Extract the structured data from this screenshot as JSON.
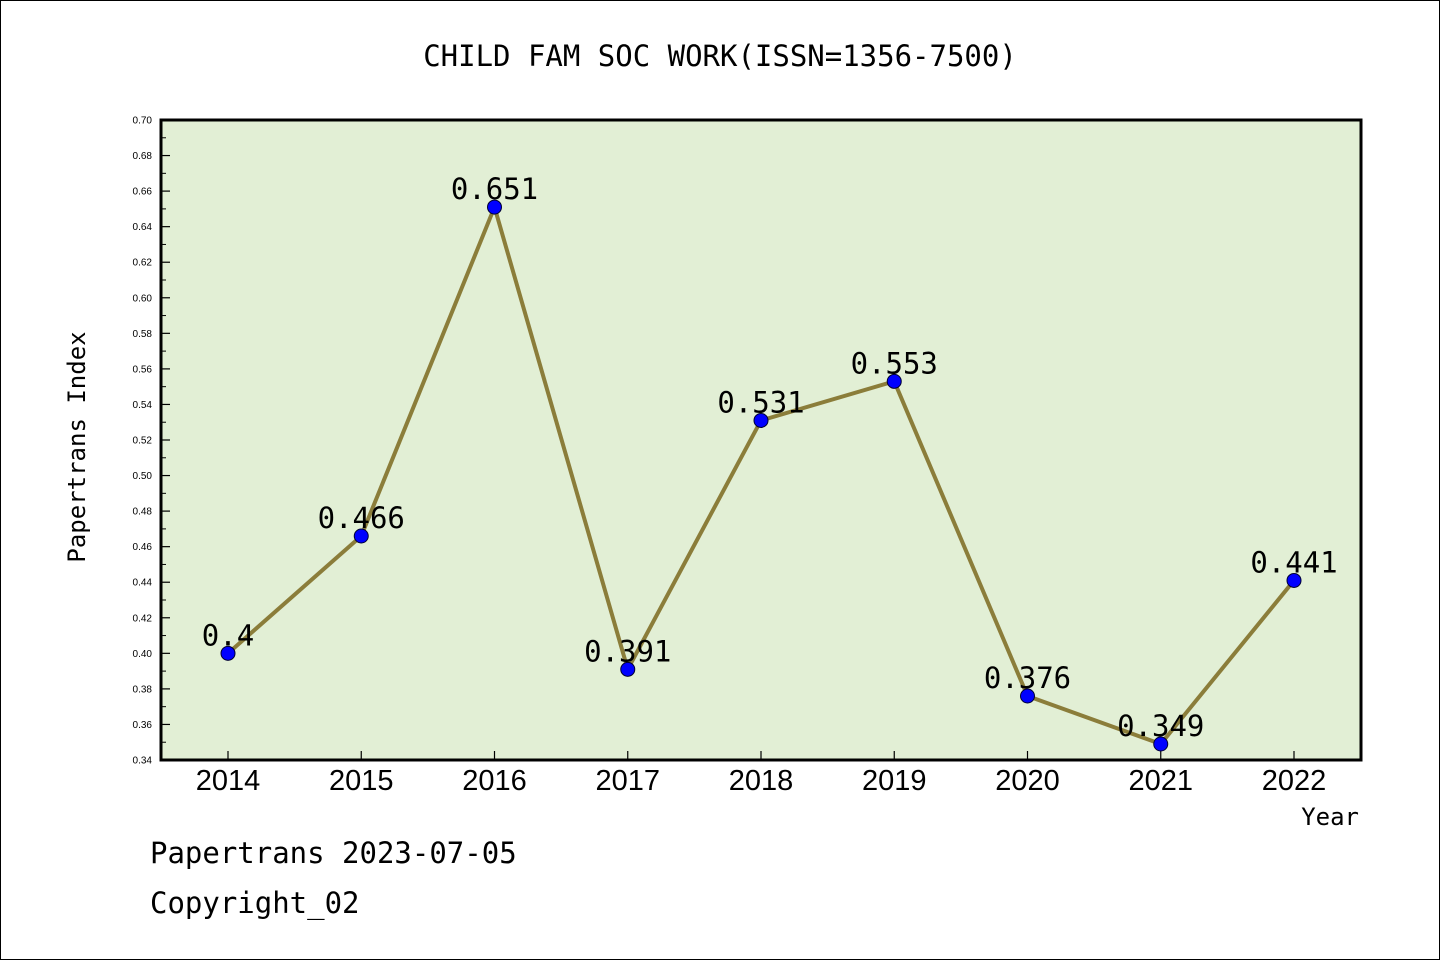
{
  "chart_data": {
    "type": "line",
    "title": "CHILD FAM SOC WORK(ISSN=1356-7500)",
    "xlabel": "Year",
    "ylabel": "Papertrans Index",
    "categories": [
      "2014",
      "2015",
      "2016",
      "2017",
      "2018",
      "2019",
      "2020",
      "2021",
      "2022"
    ],
    "values": [
      0.4,
      0.466,
      0.651,
      0.391,
      0.531,
      0.553,
      0.376,
      0.349,
      0.441
    ],
    "data_labels": [
      "0.4",
      "0.466",
      "0.651",
      "0.391",
      "0.531",
      "0.553",
      "0.376",
      "0.349",
      "0.441"
    ],
    "ylim": [
      0.34,
      0.7
    ],
    "yticks": [
      "0.34",
      "0.36",
      "0.38",
      "0.40",
      "0.42",
      "0.44",
      "0.46",
      "0.48",
      "0.50",
      "0.52",
      "0.54",
      "0.56",
      "0.58",
      "0.60",
      "0.62",
      "0.64",
      "0.66",
      "0.68",
      "0.70"
    ],
    "grid": false,
    "colors": {
      "plot_background": "#e2efd5",
      "line": "#8b7d3a",
      "marker": "#0000ff"
    }
  },
  "footer": {
    "date_line": "Papertrans 2023-07-05",
    "copyright": "Copyright_02"
  }
}
